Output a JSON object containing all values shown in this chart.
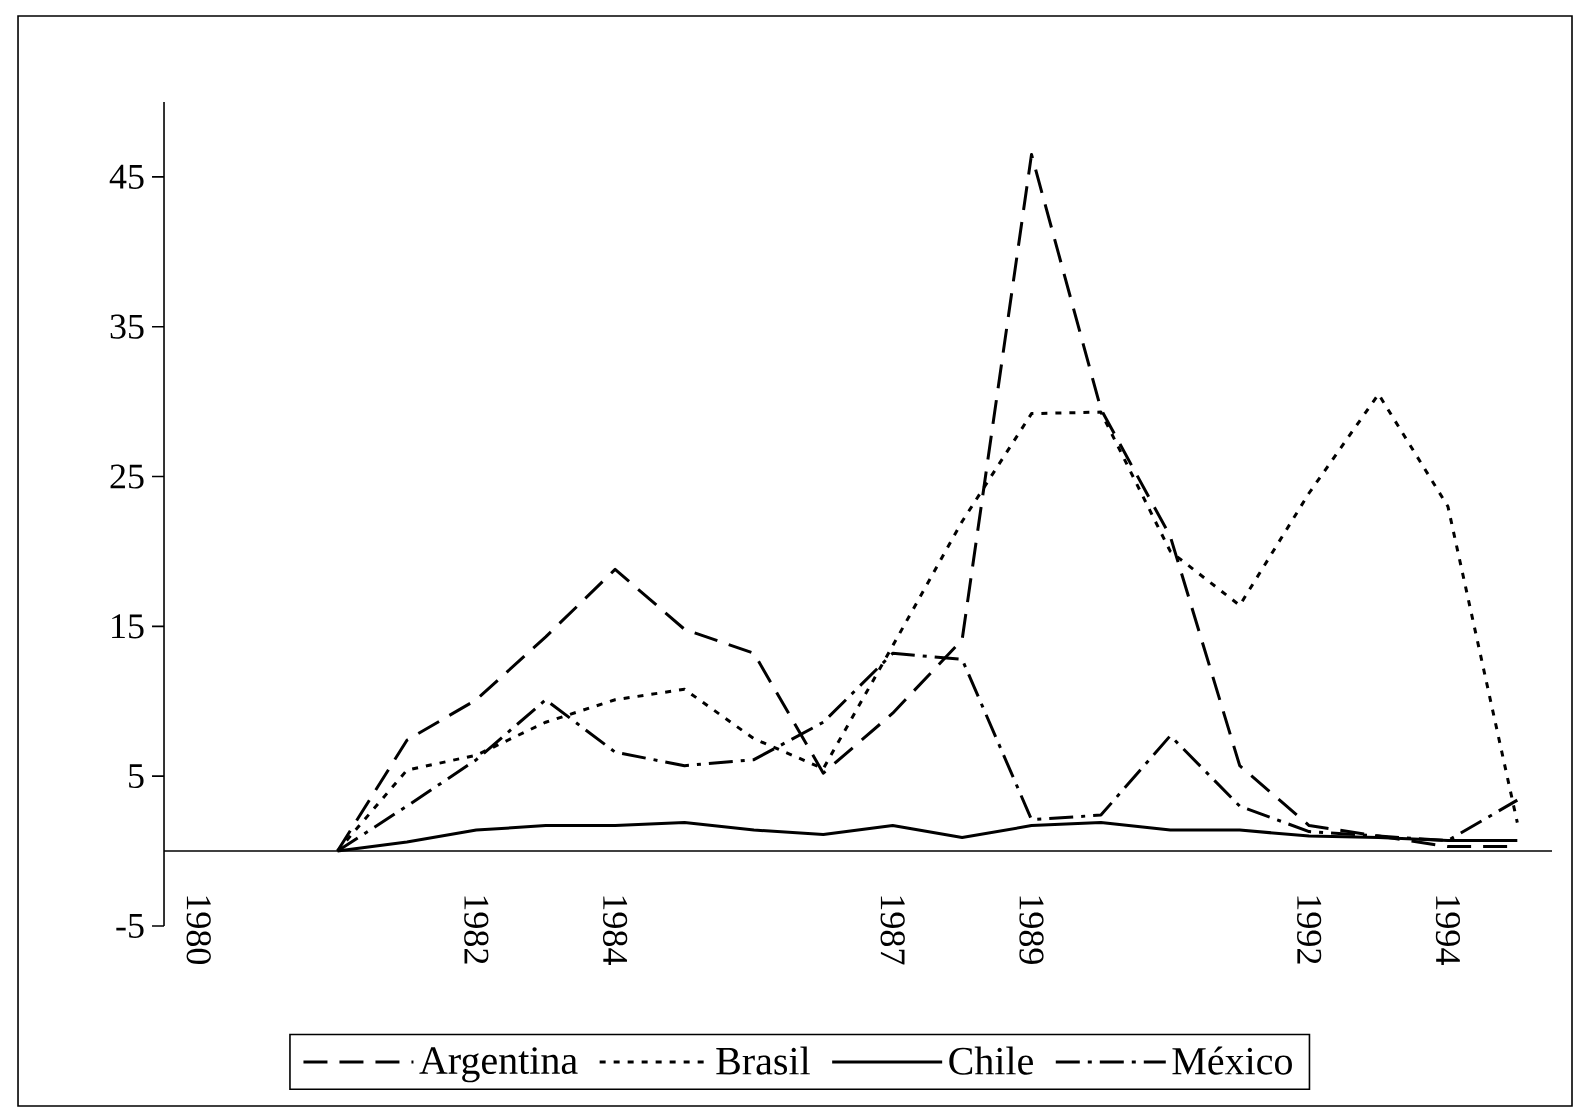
{
  "chart_data": {
    "type": "line",
    "categories": [
      "1980",
      null,
      null,
      null,
      "1982",
      null,
      "1984",
      null,
      null,
      null,
      "1987",
      null,
      "1989",
      null,
      null,
      null,
      "1992",
      null,
      "1994",
      null
    ],
    "ylim": [
      -5,
      50
    ],
    "yticks": [
      -5,
      5,
      15,
      25,
      35,
      45
    ],
    "legend": "bottom",
    "grid": false,
    "marker": "none",
    "series": [
      {
        "name": "Argentina",
        "color": "#000000",
        "line_style": "dashed",
        "values": [
          null,
          null,
          0,
          7.4,
          10.1,
          14.3,
          18.8,
          14.8,
          13.2,
          5.2,
          9.2,
          14.1,
          46.5,
          29.5,
          21,
          5.7,
          1.7,
          1.0,
          0.3,
          0.3
        ]
      },
      {
        "name": "Brasil",
        "color": "#000000",
        "line_style": "dotted",
        "values": [
          null,
          null,
          0,
          5.4,
          6.4,
          8.6,
          10.1,
          10.8,
          7.5,
          5.5,
          13.7,
          22,
          29.2,
          29.3,
          20,
          16.4,
          23.9,
          30.5,
          23,
          1.9
        ]
      },
      {
        "name": "Chile",
        "color": "#000000",
        "line_style": "solid",
        "values": [
          null,
          null,
          0,
          0.6,
          1.4,
          1.7,
          1.7,
          1.9,
          1.4,
          1.1,
          1.7,
          0.9,
          1.7,
          1.9,
          1.4,
          1.4,
          1.0,
          0.9,
          0.7,
          0.7
        ]
      },
      {
        "name": "México",
        "color": "#000000",
        "line_style": "dashdot",
        "values": [
          null,
          null,
          0,
          3.0,
          6.1,
          10.1,
          6.6,
          5.7,
          6.1,
          8.6,
          13.2,
          12.8,
          2.1,
          2.4,
          7.7,
          3.0,
          1.3,
          1.0,
          0.7,
          3.4
        ]
      }
    ]
  }
}
